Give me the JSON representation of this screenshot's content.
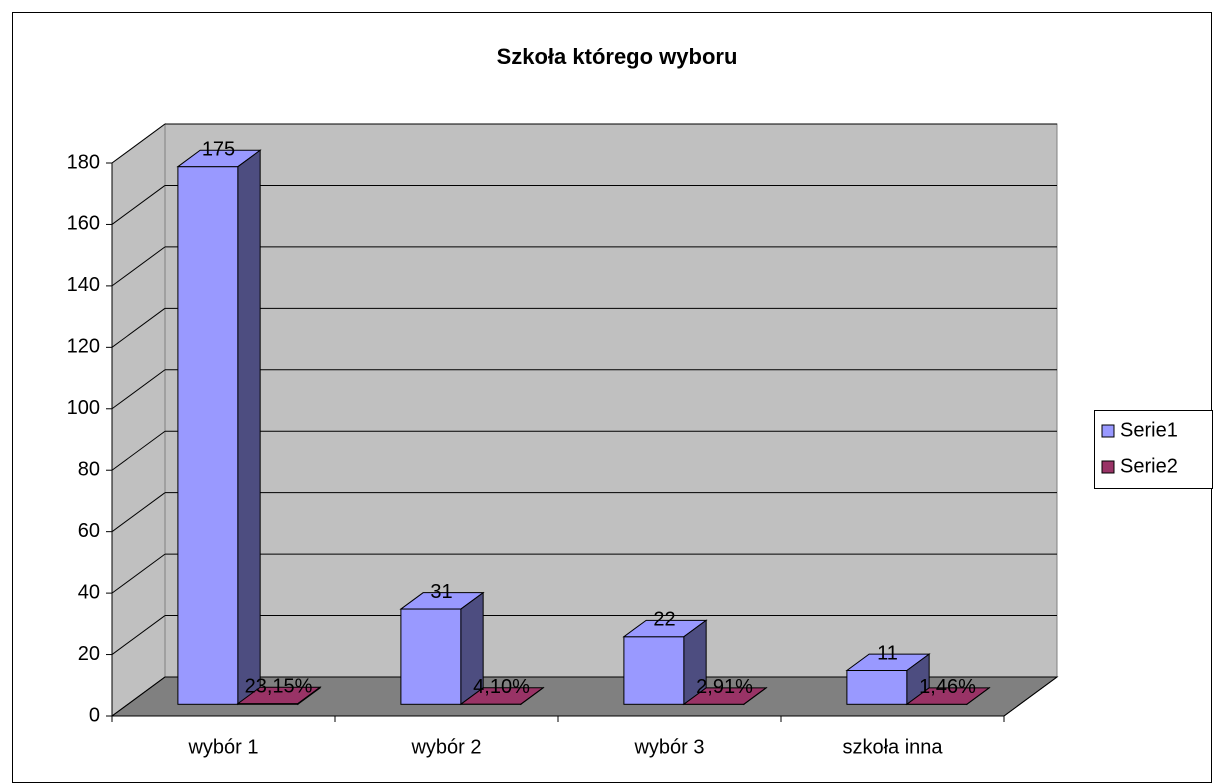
{
  "chart_data": {
    "type": "bar",
    "title": "Szkoła którego wyboru",
    "categories": [
      "wybór 1",
      "wybór 2",
      "wybór 3",
      "szkoła inna"
    ],
    "series": [
      {
        "name": "Serie1",
        "color": "#9999ff",
        "values": [
          175,
          31,
          22,
          11
        ]
      },
      {
        "name": "Serie2",
        "color": "#993366",
        "values": [
          0.2315,
          0.041,
          0.0291,
          0.0146
        ],
        "value_labels": [
          "23,15%",
          "4,10%",
          "2,91%",
          "1,46%"
        ]
      }
    ],
    "ylim": [
      0,
      180
    ],
    "yticks": [
      0,
      20,
      40,
      60,
      80,
      100,
      120,
      140,
      160,
      180
    ],
    "grid": true,
    "legend": "right"
  }
}
